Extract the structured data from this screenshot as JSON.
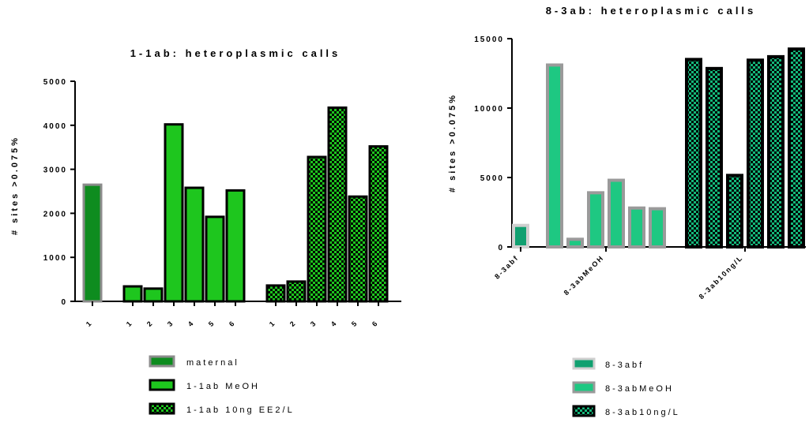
{
  "chart_data": [
    {
      "type": "bar",
      "title": "1-1ab: heteroplasmic calls",
      "ylabel": "# sites >0.075%",
      "ylim": [
        0,
        5000
      ],
      "yticks": [
        "0",
        "1000",
        "2000",
        "3000",
        "4000",
        "5000"
      ],
      "series": [
        {
          "name": "maternal",
          "categories": [
            "1"
          ],
          "values": [
            2650
          ],
          "fill": "#0e8c1f",
          "stroke": "#8c8c8c",
          "pattern": "solid"
        },
        {
          "name": "1-1ab MeOH",
          "categories": [
            "1",
            "2",
            "3",
            "4",
            "5",
            "6"
          ],
          "values": [
            340,
            290,
            4020,
            2580,
            1920,
            2520
          ],
          "fill": "#1ec61e",
          "stroke": "#000000",
          "pattern": "solid"
        },
        {
          "name": "1-1ab 10ng EE2/L",
          "categories": [
            "1",
            "2",
            "3",
            "4",
            "5",
            "6"
          ],
          "values": [
            360,
            450,
            3280,
            4400,
            2380,
            3520
          ],
          "fill": "#1ec61e",
          "stroke": "#000000",
          "pattern": "checker"
        }
      ]
    },
    {
      "type": "bar",
      "title": "8-3ab: heteroplasmic calls",
      "ylabel": "# sites >0.075%",
      "ylim": [
        0,
        15000
      ],
      "yticks": [
        "0",
        "5000",
        "10000",
        "15000"
      ],
      "group_labels": [
        "8-3abf",
        "8-3abMeOH",
        "8-3ab10ng/L"
      ],
      "series": [
        {
          "name": "8-3abf",
          "values": [
            1550
          ],
          "fill": "#10a070",
          "stroke": "#cfcfcf",
          "pattern": "solid"
        },
        {
          "name": "8-3abMeOH",
          "values": [
            13100,
            550,
            3900,
            4800,
            2800,
            2750
          ],
          "fill": "#1ec882",
          "stroke": "#9a9a9a",
          "pattern": "solid"
        },
        {
          "name": "8-3ab10ng/L",
          "values": [
            13500,
            12850,
            5150,
            13450,
            13700,
            14250
          ],
          "fill": "#13b87a",
          "stroke": "#000000",
          "pattern": "checker"
        }
      ]
    }
  ]
}
